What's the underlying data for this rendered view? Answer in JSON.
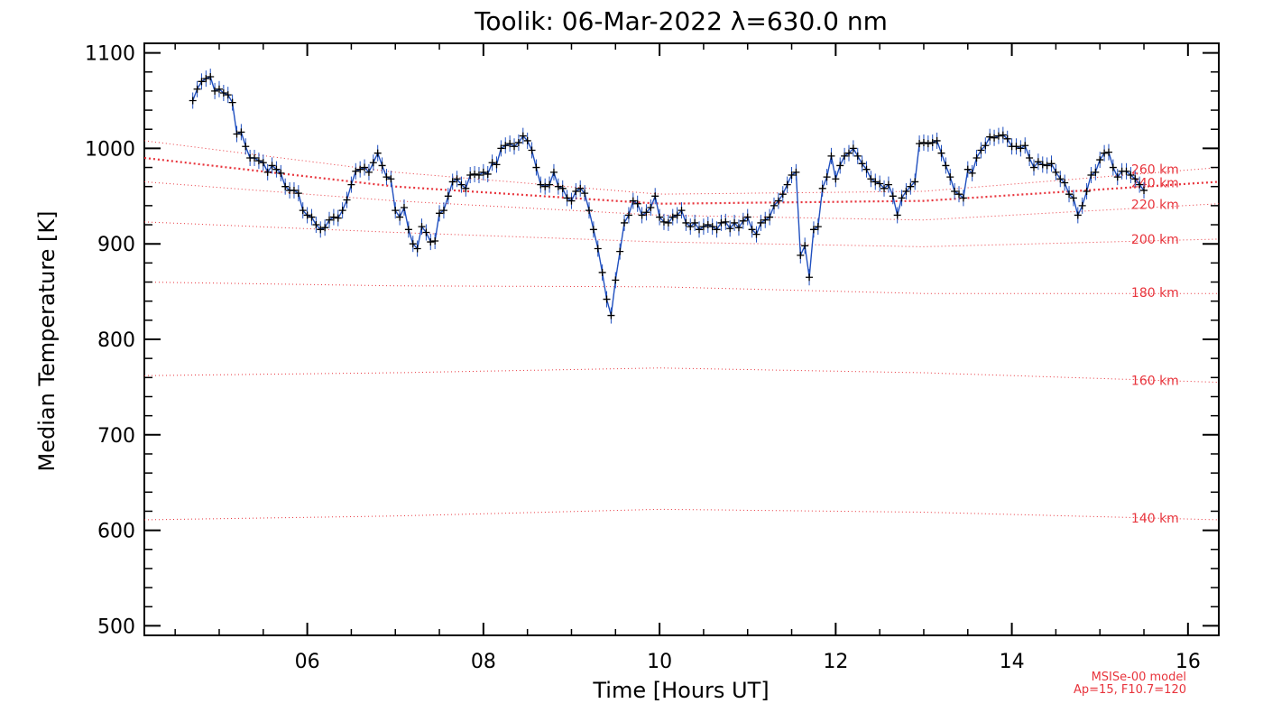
{
  "chart_data": {
    "type": "line",
    "title": "Toolik: 06-Mar-2022 λ=630.0 nm",
    "xlabel": "Time [Hours UT]",
    "ylabel": "Median Temperature [K]",
    "xlim": [
      4.15,
      16.35
    ],
    "ylim": [
      490,
      1110
    ],
    "x_ticks": [
      6,
      8,
      10,
      12,
      14,
      16
    ],
    "x_tick_labels": [
      "06",
      "08",
      "10",
      "12",
      "14",
      "16"
    ],
    "y_ticks": [
      500,
      600,
      700,
      800,
      900,
      1000,
      1100
    ],
    "y_tick_labels": [
      "500",
      "600",
      "700",
      "800",
      "900",
      "1000",
      "1100"
    ],
    "grid": false,
    "colors": {
      "series": "#1f4fbf",
      "markers": "#000000",
      "model": "#e8343c"
    },
    "series": [
      {
        "values": [
          [
            4.7,
            1050
          ],
          [
            4.75,
            1062
          ],
          [
            4.8,
            1070
          ],
          [
            4.85,
            1073
          ],
          [
            4.9,
            1075
          ],
          [
            4.95,
            1060
          ],
          [
            5.0,
            1062
          ],
          [
            5.05,
            1058
          ],
          [
            5.1,
            1056
          ],
          [
            5.15,
            1048
          ],
          [
            5.2,
            1015
          ],
          [
            5.25,
            1017
          ],
          [
            5.3,
            1002
          ],
          [
            5.35,
            990
          ],
          [
            5.4,
            990
          ],
          [
            5.45,
            987
          ],
          [
            5.5,
            985
          ],
          [
            5.55,
            975
          ],
          [
            5.6,
            982
          ],
          [
            5.65,
            978
          ],
          [
            5.7,
            974
          ],
          [
            5.75,
            960
          ],
          [
            5.8,
            956
          ],
          [
            5.85,
            956
          ],
          [
            5.9,
            953
          ],
          [
            5.95,
            935
          ],
          [
            6.0,
            930
          ],
          [
            6.05,
            928
          ],
          [
            6.1,
            920
          ],
          [
            6.15,
            915
          ],
          [
            6.2,
            917
          ],
          [
            6.25,
            925
          ],
          [
            6.3,
            928
          ],
          [
            6.35,
            927
          ],
          [
            6.4,
            935
          ],
          [
            6.45,
            946
          ],
          [
            6.5,
            962
          ],
          [
            6.55,
            976
          ],
          [
            6.6,
            978
          ],
          [
            6.65,
            980
          ],
          [
            6.7,
            975
          ],
          [
            6.75,
            985
          ],
          [
            6.8,
            995
          ],
          [
            6.85,
            982
          ],
          [
            6.9,
            970
          ],
          [
            6.95,
            968
          ],
          [
            7.0,
            935
          ],
          [
            7.05,
            928
          ],
          [
            7.1,
            938
          ],
          [
            7.15,
            915
          ],
          [
            7.2,
            900
          ],
          [
            7.25,
            895
          ],
          [
            7.3,
            918
          ],
          [
            7.35,
            912
          ],
          [
            7.4,
            902
          ],
          [
            7.45,
            903
          ],
          [
            7.5,
            932
          ],
          [
            7.55,
            935
          ],
          [
            7.6,
            950
          ],
          [
            7.65,
            965
          ],
          [
            7.7,
            968
          ],
          [
            7.75,
            962
          ],
          [
            7.8,
            958
          ],
          [
            7.85,
            972
          ],
          [
            7.9,
            973
          ],
          [
            7.95,
            972
          ],
          [
            8.0,
            975
          ],
          [
            8.05,
            973
          ],
          [
            8.1,
            985
          ],
          [
            8.15,
            983
          ],
          [
            8.2,
            1000
          ],
          [
            8.25,
            1003
          ],
          [
            8.3,
            1005
          ],
          [
            8.35,
            1002
          ],
          [
            8.4,
            1006
          ],
          [
            8.45,
            1013
          ],
          [
            8.5,
            1008
          ],
          [
            8.55,
            998
          ],
          [
            8.6,
            980
          ],
          [
            8.65,
            962
          ],
          [
            8.7,
            960
          ],
          [
            8.75,
            962
          ],
          [
            8.8,
            975
          ],
          [
            8.85,
            960
          ],
          [
            8.9,
            958
          ],
          [
            8.95,
            948
          ],
          [
            9.0,
            945
          ],
          [
            9.05,
            955
          ],
          [
            9.1,
            958
          ],
          [
            9.15,
            953
          ],
          [
            9.2,
            935
          ],
          [
            9.25,
            915
          ],
          [
            9.3,
            895
          ],
          [
            9.35,
            870
          ],
          [
            9.4,
            842
          ],
          [
            9.45,
            825
          ],
          [
            9.5,
            862
          ],
          [
            9.55,
            892
          ],
          [
            9.6,
            922
          ],
          [
            9.65,
            930
          ],
          [
            9.7,
            945
          ],
          [
            9.75,
            942
          ],
          [
            9.8,
            930
          ],
          [
            9.85,
            933
          ],
          [
            9.9,
            938
          ],
          [
            9.95,
            950
          ],
          [
            10.0,
            928
          ],
          [
            10.05,
            923
          ],
          [
            10.1,
            922
          ],
          [
            10.15,
            928
          ],
          [
            10.2,
            930
          ],
          [
            10.25,
            935
          ],
          [
            10.3,
            922
          ],
          [
            10.35,
            918
          ],
          [
            10.4,
            922
          ],
          [
            10.45,
            915
          ],
          [
            10.5,
            918
          ],
          [
            10.55,
            920
          ],
          [
            10.6,
            918
          ],
          [
            10.65,
            915
          ],
          [
            10.7,
            922
          ],
          [
            10.75,
            923
          ],
          [
            10.8,
            916
          ],
          [
            10.85,
            922
          ],
          [
            10.9,
            917
          ],
          [
            10.95,
            924
          ],
          [
            11.0,
            928
          ],
          [
            11.05,
            915
          ],
          [
            11.1,
            910
          ],
          [
            11.15,
            922
          ],
          [
            11.2,
            925
          ],
          [
            11.25,
            928
          ],
          [
            11.3,
            940
          ],
          [
            11.35,
            945
          ],
          [
            11.4,
            952
          ],
          [
            11.45,
            962
          ],
          [
            11.5,
            972
          ],
          [
            11.55,
            975
          ],
          [
            11.6,
            888
          ],
          [
            11.65,
            898
          ],
          [
            11.7,
            865
          ],
          [
            11.75,
            915
          ],
          [
            11.8,
            918
          ],
          [
            11.85,
            958
          ],
          [
            11.9,
            970
          ],
          [
            11.95,
            992
          ],
          [
            12.0,
            968
          ],
          [
            12.05,
            982
          ],
          [
            12.1,
            992
          ],
          [
            12.15,
            995
          ],
          [
            12.2,
            1000
          ],
          [
            12.25,
            992
          ],
          [
            12.3,
            984
          ],
          [
            12.35,
            978
          ],
          [
            12.4,
            968
          ],
          [
            12.45,
            965
          ],
          [
            12.5,
            963
          ],
          [
            12.55,
            958
          ],
          [
            12.6,
            962
          ],
          [
            12.65,
            950
          ],
          [
            12.7,
            930
          ],
          [
            12.75,
            948
          ],
          [
            12.8,
            955
          ],
          [
            12.85,
            960
          ],
          [
            12.9,
            965
          ],
          [
            12.95,
            1005
          ],
          [
            13.0,
            1006
          ],
          [
            13.05,
            1005
          ],
          [
            13.1,
            1006
          ],
          [
            13.15,
            1008
          ],
          [
            13.2,
            995
          ],
          [
            13.25,
            982
          ],
          [
            13.3,
            970
          ],
          [
            13.35,
            955
          ],
          [
            13.4,
            952
          ],
          [
            13.45,
            948
          ],
          [
            13.5,
            978
          ],
          [
            13.55,
            974
          ],
          [
            13.6,
            990
          ],
          [
            13.65,
            998
          ],
          [
            13.7,
            1003
          ],
          [
            13.75,
            1012
          ],
          [
            13.8,
            1011
          ],
          [
            13.85,
            1013
          ],
          [
            13.9,
            1014
          ],
          [
            13.95,
            1010
          ],
          [
            14.0,
            1002
          ],
          [
            14.05,
            1002
          ],
          [
            14.1,
            1000
          ],
          [
            14.15,
            1003
          ],
          [
            14.2,
            990
          ],
          [
            14.25,
            980
          ],
          [
            14.3,
            986
          ],
          [
            14.35,
            983
          ],
          [
            14.4,
            982
          ],
          [
            14.45,
            984
          ],
          [
            14.5,
            975
          ],
          [
            14.55,
            968
          ],
          [
            14.6,
            964
          ],
          [
            14.65,
            952
          ],
          [
            14.7,
            948
          ],
          [
            14.75,
            930
          ],
          [
            14.8,
            940
          ],
          [
            14.85,
            955
          ],
          [
            14.9,
            972
          ],
          [
            14.95,
            975
          ],
          [
            15.0,
            988
          ],
          [
            15.05,
            995
          ],
          [
            15.1,
            996
          ],
          [
            15.15,
            980
          ],
          [
            15.2,
            970
          ],
          [
            15.25,
            976
          ],
          [
            15.3,
            976
          ],
          [
            15.35,
            972
          ],
          [
            15.4,
            968
          ],
          [
            15.45,
            962
          ],
          [
            15.5,
            956
          ]
        ]
      }
    ],
    "model": {
      "labels": [
        "140 km",
        "160 km",
        "180 km",
        "200 km",
        "220 km",
        "240 km",
        "260 km"
      ],
      "curves": [
        {
          "label": "140 km",
          "values": [
            [
              4.15,
              611
            ],
            [
              7,
              615
            ],
            [
              10,
              622
            ],
            [
              13,
              619
            ],
            [
              16.35,
              611
            ]
          ]
        },
        {
          "label": "160 km",
          "values": [
            [
              4.15,
              762
            ],
            [
              7,
              765
            ],
            [
              10,
              770
            ],
            [
              13,
              765
            ],
            [
              16.35,
              755
            ]
          ]
        },
        {
          "label": "180 km",
          "values": [
            [
              4.15,
              860
            ],
            [
              7,
              856
            ],
            [
              10,
              855
            ],
            [
              13,
              848
            ],
            [
              16.35,
              848
            ]
          ]
        },
        {
          "label": "200 km",
          "values": [
            [
              4.15,
              923
            ],
            [
              7,
              912
            ],
            [
              10,
              902
            ],
            [
              13,
              897
            ],
            [
              16.35,
              905
            ]
          ]
        },
        {
          "label": "220 km",
          "values": [
            [
              4.15,
              965
            ],
            [
              7,
              945
            ],
            [
              10,
              930
            ],
            [
              13,
              925
            ],
            [
              16.35,
              942
            ]
          ]
        },
        {
          "label": "240 km",
          "values": [
            [
              4.15,
              990
            ],
            [
              7,
              960
            ],
            [
              10,
              942
            ],
            [
              13,
              945
            ],
            [
              16.35,
              965
            ]
          ]
        },
        {
          "label": "260 km",
          "values": [
            [
              4.15,
              1008
            ],
            [
              7,
              975
            ],
            [
              10,
              952
            ],
            [
              13,
              955
            ],
            [
              16.35,
              980
            ]
          ]
        }
      ],
      "bold_curve": "240 km",
      "footnote_line1": "MSISe-00 model",
      "footnote_line2": "Ap=15, F10.7=120"
    }
  }
}
